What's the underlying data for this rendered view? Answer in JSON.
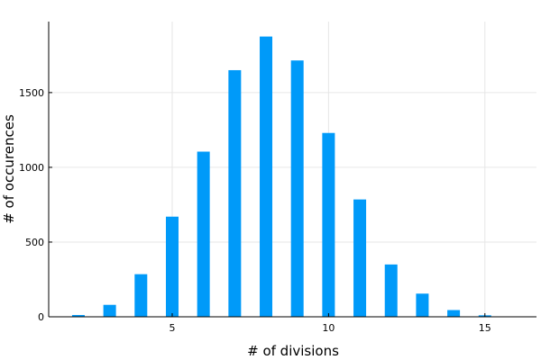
{
  "chart_data": {
    "type": "bar",
    "title": "",
    "xlabel": "# of divisions",
    "ylabel": "# of occurences",
    "x": [
      2,
      3,
      4,
      5,
      6,
      7,
      8,
      9,
      10,
      11,
      12,
      13,
      14,
      15,
      16
    ],
    "values": [
      12,
      80,
      285,
      670,
      1105,
      1650,
      1875,
      1715,
      1230,
      785,
      350,
      155,
      45,
      10,
      2
    ],
    "xlim": [
      1.05,
      16.65
    ],
    "ylim": [
      0,
      1975
    ],
    "xticks": [
      5,
      10,
      15
    ],
    "yticks": [
      0,
      500,
      1000,
      1500
    ],
    "grid": true,
    "legend": "none",
    "bar_color": "#009AF9"
  }
}
